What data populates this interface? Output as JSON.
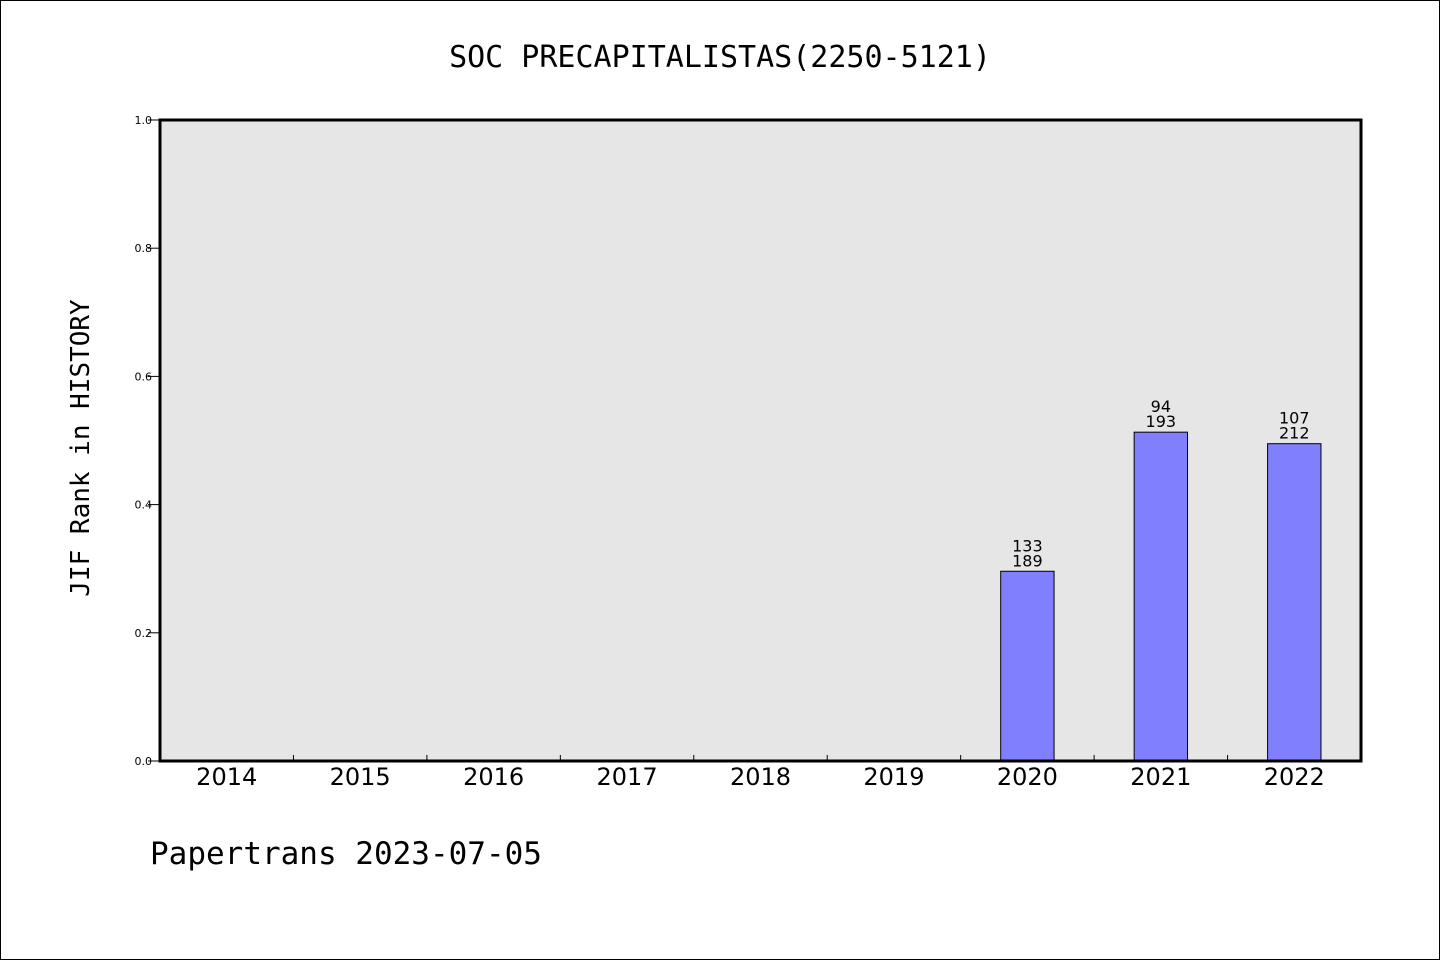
{
  "chart_data": {
    "type": "bar",
    "title": "SOC PRECAPITALISTAS(2250-5121)",
    "ylabel": "JIF Rank in HISTORY",
    "xlabel": "",
    "ylim": [
      0,
      1
    ],
    "yticks": [
      "0.0",
      "0.2",
      "0.4",
      "0.6",
      "0.8",
      "1.0"
    ],
    "categories": [
      "2014",
      "2015",
      "2016",
      "2017",
      "2018",
      "2019",
      "2020",
      "2021",
      "2022"
    ],
    "values": [
      null,
      null,
      null,
      null,
      null,
      null,
      0.296,
      0.513,
      0.495
    ],
    "labels_top": [
      "",
      "",
      "",
      "",
      "",
      "",
      "133",
      "94",
      "107"
    ],
    "labels_bottom": [
      "",
      "",
      "",
      "",
      "",
      "",
      "189",
      "193",
      "212"
    ],
    "bar_color": "#8080ff",
    "plot_background": "#e6e6e6",
    "grid": false
  },
  "credit": "Papertrans 2023-07-05"
}
